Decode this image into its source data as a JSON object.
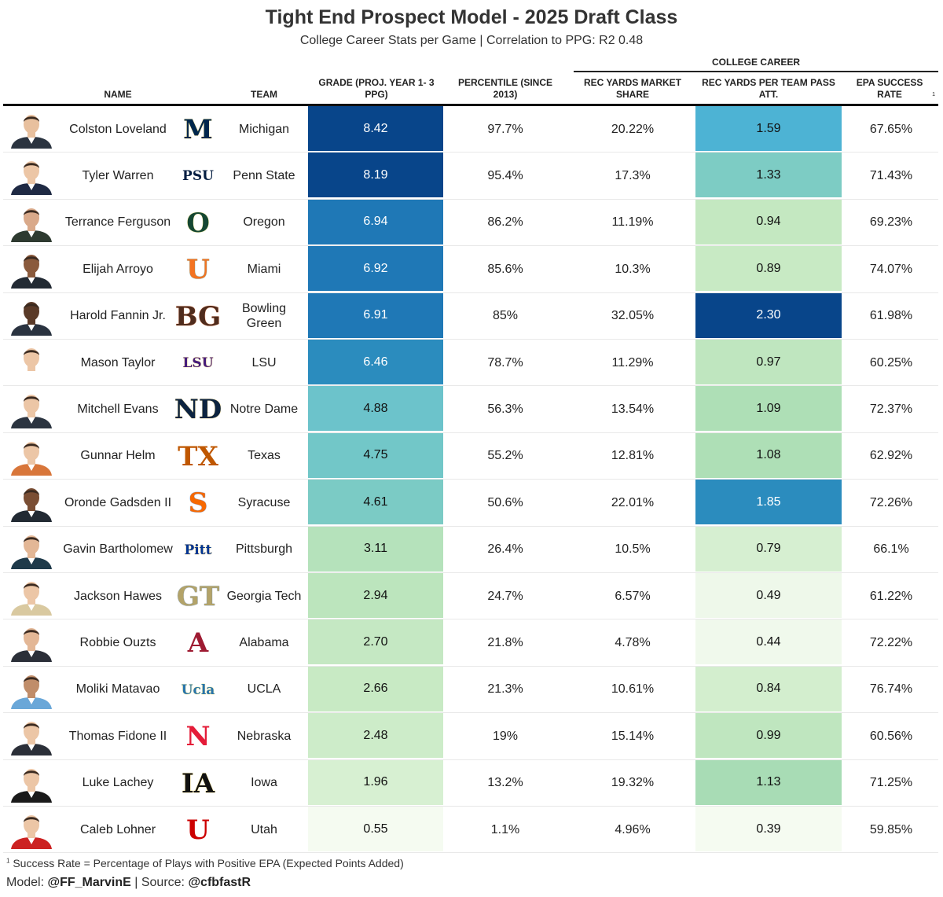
{
  "title": "Tight End Prospect Model - 2025 Draft Class",
  "subtitle": "College Career Stats per Game | Correlation to PPG: R2 0.48",
  "spanner": "COLLEGE CAREER",
  "headers": {
    "name": "NAME",
    "team": "TEAM",
    "grade": "GRADE (PROJ. YEAR 1- 3 PPG)",
    "percentile": "PERCENTILE (SINCE 2013)",
    "market_share": "REC YARDS MARKET SHARE",
    "per_att": "REC YARDS PER TEAM PASS ATT.",
    "epa": "EPA SUCCESS RATE",
    "epa_mark": "1"
  },
  "rows": [
    {
      "name": "Colston Loveland",
      "team": "Michigan",
      "grade": "8.42",
      "percentile": "97.7%",
      "share": "20.22%",
      "per_att": "1.59",
      "epa": "67.65%",
      "logo_text": "M",
      "logo_color": "#00274c",
      "logo_accent": "#ffcb05",
      "grade_bg": "#08458a",
      "grade_fg": "#ffffff",
      "att_bg": "#4db3d4",
      "att_fg": "#111111",
      "skin": "#e8c09e",
      "shirt": "#2b3440"
    },
    {
      "name": "Tyler Warren",
      "team": "Penn State",
      "grade": "8.19",
      "percentile": "95.4%",
      "share": "17.3%",
      "per_att": "1.33",
      "epa": "71.43%",
      "logo_text": "PSU",
      "logo_color": "#041e42",
      "logo_accent": "#ffffff",
      "grade_bg": "#08458a",
      "grade_fg": "#ffffff",
      "att_bg": "#7dccc4",
      "att_fg": "#111111",
      "skin": "#ecc6a6",
      "shirt": "#1f2a44"
    },
    {
      "name": "Terrance Ferguson",
      "team": "Oregon",
      "grade": "6.94",
      "percentile": "86.2%",
      "share": "11.19%",
      "per_att": "0.94",
      "epa": "69.23%",
      "logo_text": "O",
      "logo_color": "#154733",
      "logo_accent": "#fee123",
      "grade_bg": "#1f78b6",
      "grade_fg": "#ffffff",
      "att_bg": "#c4e8c1",
      "att_fg": "#111111",
      "skin": "#d9a98a",
      "shirt": "#2e3a30"
    },
    {
      "name": "Elijah Arroyo",
      "team": "Miami",
      "grade": "6.92",
      "percentile": "85.6%",
      "share": "10.3%",
      "per_att": "0.89",
      "epa": "74.07%",
      "logo_text": "U",
      "logo_color": "#f47321",
      "logo_accent": "#005030",
      "grade_bg": "#1f78b6",
      "grade_fg": "#ffffff",
      "att_bg": "#c8eac4",
      "att_fg": "#111111",
      "skin": "#8a5a3c",
      "shirt": "#222a33"
    },
    {
      "name": "Harold Fannin Jr.",
      "team": "Bowling Green",
      "grade": "6.91",
      "percentile": "85%",
      "share": "32.05%",
      "per_att": "2.30",
      "epa": "61.98%",
      "logo_text": "BG",
      "logo_color": "#4f2c1d",
      "logo_accent": "#fe5000",
      "grade_bg": "#1f78b6",
      "grade_fg": "#ffffff",
      "att_bg": "#08458a",
      "att_fg": "#ffffff",
      "skin": "#5a3a28",
      "shirt": "#2a3340"
    },
    {
      "name": "Mason Taylor",
      "team": "LSU",
      "grade": "6.46",
      "percentile": "78.7%",
      "share": "11.29%",
      "per_att": "0.97",
      "epa": "60.25%",
      "logo_text": "LSU",
      "logo_color": "#461d7c",
      "logo_accent": "#fdd023",
      "grade_bg": "#2b8cbe",
      "grade_fg": "#ffffff",
      "att_bg": "#bfe6bf",
      "att_fg": "#111111",
      "skin": "#ecc6a6",
      "shirt": "#ffffff"
    },
    {
      "name": "Mitchell Evans",
      "team": "Notre Dame",
      "grade": "4.88",
      "percentile": "56.3%",
      "share": "13.54%",
      "per_att": "1.09",
      "epa": "72.37%",
      "logo_text": "ND",
      "logo_color": "#0c2340",
      "logo_accent": "#c99700",
      "grade_bg": "#6cc3cb",
      "grade_fg": "#111111",
      "att_bg": "#aedfb6",
      "att_fg": "#111111",
      "skin": "#ecc6a6",
      "shirt": "#2b3440"
    },
    {
      "name": "Gunnar Helm",
      "team": "Texas",
      "grade": "4.75",
      "percentile": "55.2%",
      "share": "12.81%",
      "per_att": "1.08",
      "epa": "62.92%",
      "logo_text": "TX",
      "logo_color": "#bf5700",
      "logo_accent": "#ffffff",
      "grade_bg": "#72c7c8",
      "grade_fg": "#111111",
      "att_bg": "#aedfb6",
      "att_fg": "#111111",
      "skin": "#ecc6a6",
      "shirt": "#d8763a"
    },
    {
      "name": "Oronde Gadsden II",
      "team": "Syracuse",
      "grade": "4.61",
      "percentile": "50.6%",
      "share": "22.01%",
      "per_att": "1.85",
      "epa": "72.26%",
      "logo_text": "S",
      "logo_color": "#f76900",
      "logo_accent": "#000e54",
      "grade_bg": "#7bcbc5",
      "grade_fg": "#111111",
      "att_bg": "#2b8cbe",
      "att_fg": "#ffffff",
      "skin": "#7a4e34",
      "shirt": "#222a33"
    },
    {
      "name": "Gavin Bartholomew",
      "team": "Pittsburgh",
      "grade": "3.11",
      "percentile": "26.4%",
      "share": "10.5%",
      "per_att": "0.79",
      "epa": "66.1%",
      "logo_text": "Pitt",
      "logo_color": "#003594",
      "logo_accent": "#ffb81c",
      "grade_bg": "#b5e2bb",
      "grade_fg": "#111111",
      "att_bg": "#d6efd1",
      "att_fg": "#111111",
      "skin": "#e3b796",
      "shirt": "#1f3a4a"
    },
    {
      "name": "Jackson Hawes",
      "team": "Georgia Tech",
      "grade": "2.94",
      "percentile": "24.7%",
      "share": "6.57%",
      "per_att": "0.49",
      "epa": "61.22%",
      "logo_text": "GT",
      "logo_color": "#b3a369",
      "logo_accent": "#003057",
      "grade_bg": "#bce5bd",
      "grade_fg": "#111111",
      "att_bg": "#eef8ea",
      "att_fg": "#111111",
      "skin": "#ecc6a6",
      "shirt": "#d9c9a0"
    },
    {
      "name": "Robbie Ouzts",
      "team": "Alabama",
      "grade": "2.70",
      "percentile": "21.8%",
      "share": "4.78%",
      "per_att": "0.44",
      "epa": "72.22%",
      "logo_text": "A",
      "logo_color": "#9e1b32",
      "logo_accent": "#ffffff",
      "grade_bg": "#c5e8c3",
      "grade_fg": "#111111",
      "att_bg": "#f0f9ec",
      "att_fg": "#111111",
      "skin": "#e3b796",
      "shirt": "#2b2f38"
    },
    {
      "name": "Moliki Matavao",
      "team": "UCLA",
      "grade": "2.66",
      "percentile": "21.3%",
      "share": "10.61%",
      "per_att": "0.84",
      "epa": "76.74%",
      "logo_text": "Ucla",
      "logo_color": "#2774ae",
      "logo_accent": "#ffd100",
      "grade_bg": "#c8eac4",
      "grade_fg": "#111111",
      "att_bg": "#d3eece",
      "att_fg": "#111111",
      "skin": "#c08d6a",
      "shirt": "#6aa7d8"
    },
    {
      "name": "Thomas Fidone II",
      "team": "Nebraska",
      "grade": "2.48",
      "percentile": "19%",
      "share": "15.14%",
      "per_att": "0.99",
      "epa": "60.56%",
      "logo_text": "N",
      "logo_color": "#e41c38",
      "logo_accent": "#ffffff",
      "grade_bg": "#cdecc9",
      "grade_fg": "#111111",
      "att_bg": "#bfe6bf",
      "att_fg": "#111111",
      "skin": "#ecc6a6",
      "shirt": "#2b2f38"
    },
    {
      "name": "Luke Lachey",
      "team": "Iowa",
      "grade": "1.96",
      "percentile": "13.2%",
      "share": "19.32%",
      "per_att": "1.13",
      "epa": "71.25%",
      "logo_text": "IA",
      "logo_color": "#111111",
      "logo_accent": "#ffcd00",
      "grade_bg": "#d7f0d2",
      "grade_fg": "#111111",
      "att_bg": "#a8dcb5",
      "att_fg": "#111111",
      "skin": "#ecc6a6",
      "shirt": "#1a1a1a"
    },
    {
      "name": "Caleb Lohner",
      "team": "Utah",
      "grade": "0.55",
      "percentile": "1.1%",
      "share": "4.96%",
      "per_att": "0.39",
      "epa": "59.85%",
      "logo_text": "U",
      "logo_color": "#cc0000",
      "logo_accent": "#ffffff",
      "grade_bg": "#f5fbf1",
      "grade_fg": "#111111",
      "att_bg": "#f5fbf1",
      "att_fg": "#111111",
      "skin": "#ecc6a6",
      "shirt": "#cc2222"
    }
  ],
  "footnote_mark": "1",
  "footnote": "Success Rate = Percentage of Plays with Positive EPA (Expected Points Added)",
  "credit": {
    "model_label": "Model:",
    "model_handle": "@FF_MarvinE",
    "sep": "|",
    "source_label": "Source:",
    "source_handle": "@cfbfastR"
  }
}
